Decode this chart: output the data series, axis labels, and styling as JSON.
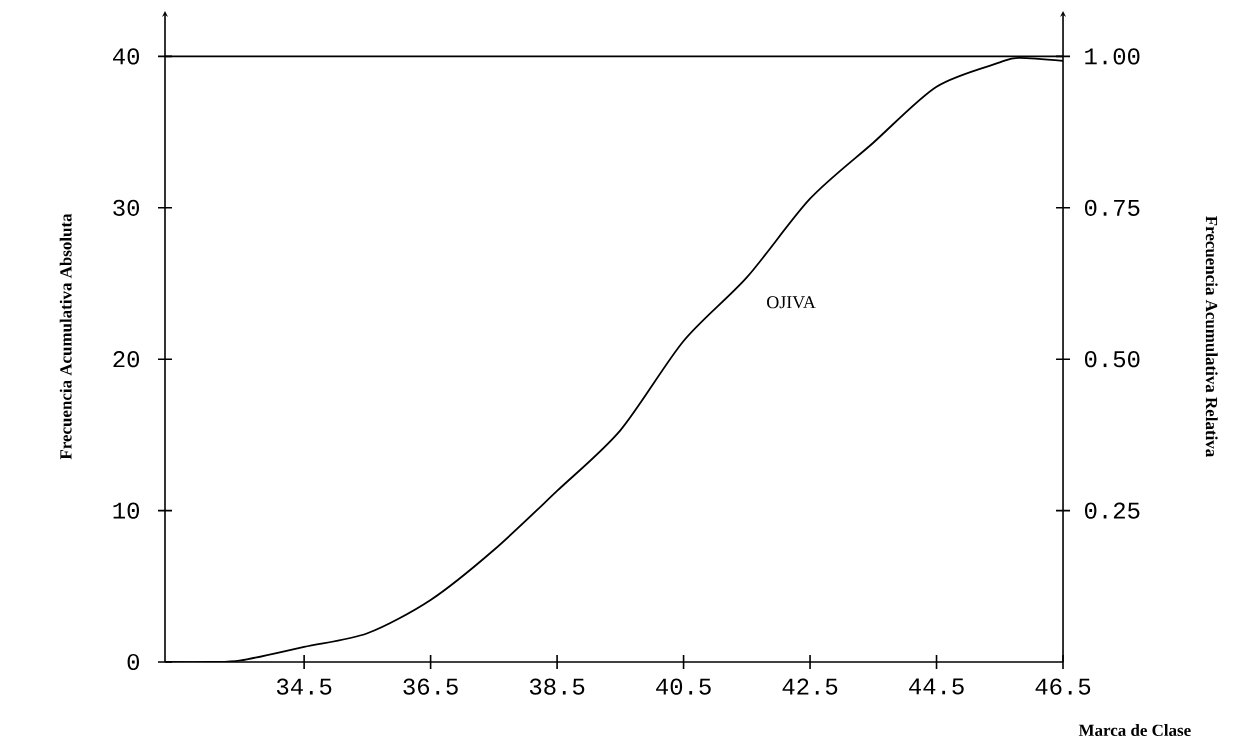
{
  "chart_data": {
    "type": "line",
    "xlabel": "Marca de Clase",
    "ylabel": "Frecuencia Acumulativa Absoluta",
    "y2label": "Frecuencia Acumulativa Relativa",
    "xlim": [
      32.3,
      46.5
    ],
    "xticks": [
      34.5,
      36.5,
      38.5,
      40.5,
      42.5,
      44.5,
      46.5
    ],
    "ylim": [
      0,
      43
    ],
    "yticks": [
      0,
      10,
      20,
      30,
      40
    ],
    "y2lim": [
      0,
      1.075
    ],
    "y2ticks": [
      0.25,
      {
        "value": 0.5,
        "label": "0.50"
      },
      0.75,
      {
        "value": 1,
        "label": "1.00"
      }
    ],
    "series": [
      {
        "name": "OJIVA",
        "color": "#000000",
        "x": [
          32.3,
          33.0,
          33.5,
          34.5,
          35.5,
          36.5,
          37.5,
          38.5,
          39.5,
          40.5,
          41.5,
          42.5,
          43.5,
          44.5,
          45.5,
          45.8,
          46.5
        ],
        "values": [
          0,
          0,
          0.1,
          1.0,
          1.9,
          4.1,
          7.4,
          11.3,
          15.3,
          21.2,
          25.4,
          30.6,
          34.3,
          38.0,
          39.6,
          39.9,
          39.7
        ]
      }
    ],
    "ref_lines": [
      {
        "axis": "y",
        "value": 40,
        "color": "#000000"
      }
    ],
    "grid": false,
    "legend": false,
    "marker": "none",
    "line_style": "solid"
  }
}
